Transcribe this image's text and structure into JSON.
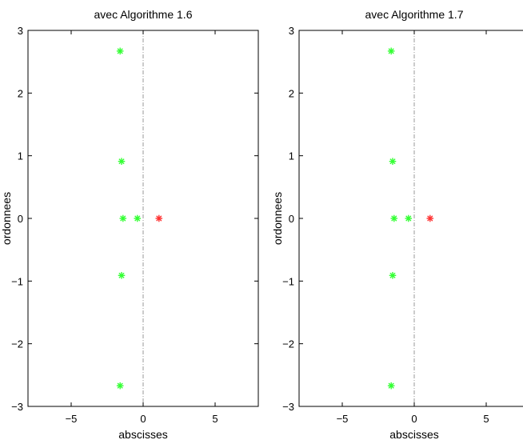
{
  "chart_data": [
    {
      "type": "scatter",
      "title": "avec Algorithme 1.6",
      "xlabel": "abscisses",
      "ylabel": "ordonnees",
      "xlim": [
        -8,
        8
      ],
      "ylim": [
        -3,
        3
      ],
      "xticks": [
        -5,
        0,
        5
      ],
      "xtick_labels": [
        "−5",
        "0",
        "5"
      ],
      "yticks": [
        -3,
        -2,
        -1,
        0,
        1,
        2,
        3
      ],
      "ytick_labels": [
        "−3",
        "−2",
        "−1",
        "0",
        "1",
        "2",
        "3"
      ],
      "grid": false,
      "reference_line": {
        "axis": "x",
        "value": 0,
        "style": "dash-dot",
        "color": "#808080"
      },
      "series": [
        {
          "marker": "*",
          "color": "#33ff33",
          "points": [
            {
              "x": -1.6,
              "y": 2.67
            },
            {
              "x": -1.5,
              "y": 0.91
            },
            {
              "x": -1.4,
              "y": 0.0
            },
            {
              "x": -0.4,
              "y": 0.0
            },
            {
              "x": -1.5,
              "y": -0.91
            },
            {
              "x": -1.6,
              "y": -2.67
            }
          ]
        },
        {
          "marker": "*",
          "color": "#ff3333",
          "points": [
            {
              "x": 1.1,
              "y": 0.0
            }
          ]
        }
      ]
    },
    {
      "type": "scatter",
      "title": "avec Algorithme 1.7",
      "xlabel": "abscisses",
      "ylabel": "ordonnees",
      "xlim": [
        -8,
        8
      ],
      "ylim": [
        -3,
        3
      ],
      "xticks": [
        -5,
        0,
        5
      ],
      "xtick_labels": [
        "−5",
        "0",
        "5"
      ],
      "yticks": [
        -3,
        -2,
        -1,
        0,
        1,
        2,
        3
      ],
      "ytick_labels": [
        "−3",
        "−2",
        "−1",
        "0",
        "1",
        "2",
        "3"
      ],
      "grid": false,
      "reference_line": {
        "axis": "x",
        "value": 0,
        "style": "dash-dot",
        "color": "#808080"
      },
      "series": [
        {
          "marker": "*",
          "color": "#33ff33",
          "points": [
            {
              "x": -1.6,
              "y": 2.67
            },
            {
              "x": -1.5,
              "y": 0.91
            },
            {
              "x": -1.4,
              "y": 0.0
            },
            {
              "x": -0.4,
              "y": 0.0
            },
            {
              "x": -1.5,
              "y": -0.91
            },
            {
              "x": -1.6,
              "y": -2.67
            }
          ]
        },
        {
          "marker": "*",
          "color": "#ff3333",
          "points": [
            {
              "x": 1.1,
              "y": 0.0
            }
          ]
        }
      ]
    }
  ]
}
